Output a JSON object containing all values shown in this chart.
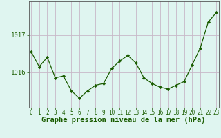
{
  "x": [
    0,
    1,
    2,
    3,
    4,
    5,
    6,
    7,
    8,
    9,
    10,
    11,
    12,
    13,
    14,
    15,
    16,
    17,
    18,
    19,
    20,
    21,
    22,
    23
  ],
  "y": [
    1016.55,
    1016.15,
    1016.4,
    1015.85,
    1015.9,
    1015.5,
    1015.3,
    1015.5,
    1015.65,
    1015.7,
    1016.1,
    1016.3,
    1016.45,
    1016.25,
    1015.85,
    1015.7,
    1015.6,
    1015.55,
    1015.65,
    1015.75,
    1016.2,
    1016.65,
    1017.35,
    1017.6
  ],
  "line_color": "#1a5c00",
  "marker_color": "#1a5c00",
  "bg_color": "#dff5f0",
  "grid_color_v": "#c8b8c8",
  "grid_color_h": "#c8b8c8",
  "xlabel": "Graphe pression niveau de la mer (hPa)",
  "ytick_labels": [
    "1016",
    "1017"
  ],
  "ytick_values": [
    1016.0,
    1017.0
  ],
  "xlim": [
    -0.3,
    23.3
  ],
  "ylim": [
    1015.05,
    1017.9
  ],
  "xlabel_fontsize": 7.5,
  "xtick_fontsize": 5.5,
  "ytick_fontsize": 6.5
}
